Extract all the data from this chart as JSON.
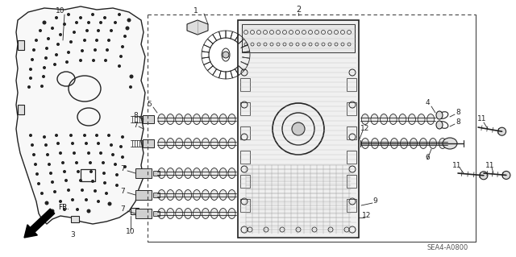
{
  "bg_color": "#ffffff",
  "line_color": "#222222",
  "fig_width": 6.4,
  "fig_height": 3.19,
  "dpi": 100,
  "watermark": "SEA4-A0800"
}
